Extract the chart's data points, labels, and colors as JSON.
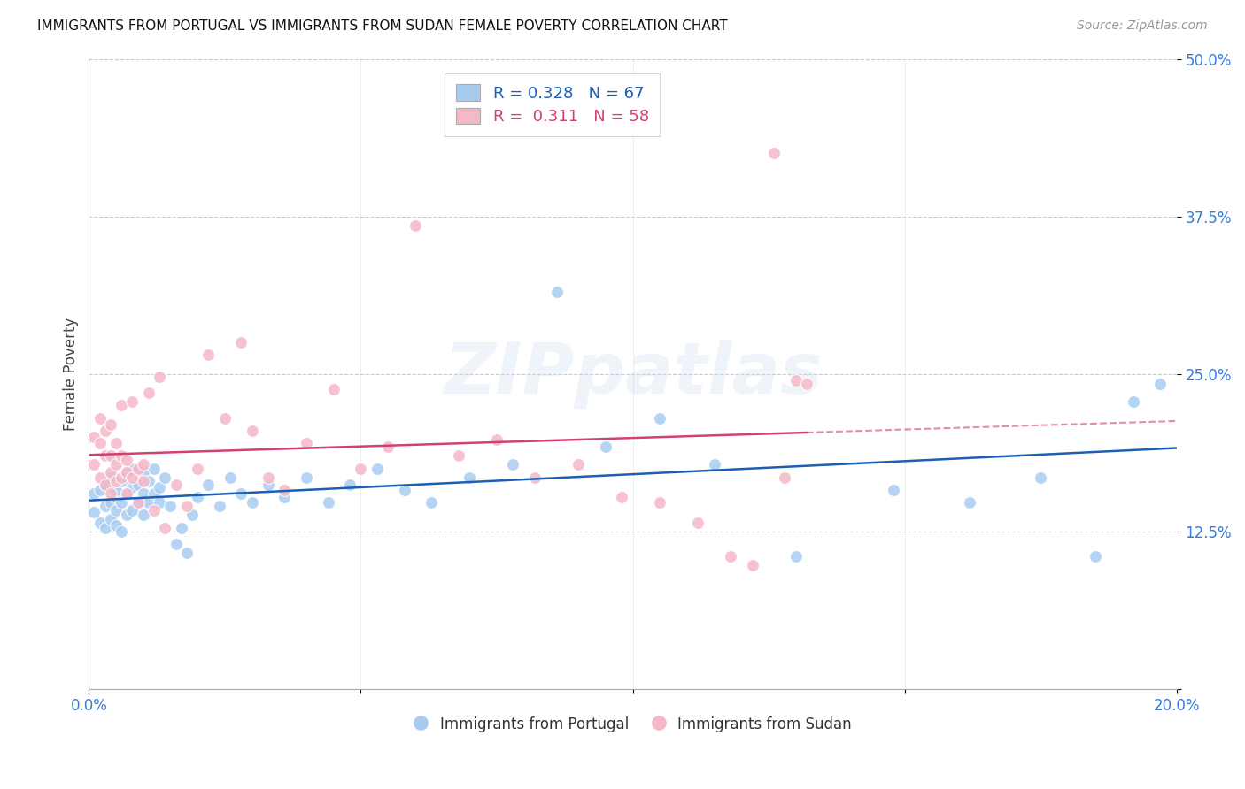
{
  "title": "IMMIGRANTS FROM PORTUGAL VS IMMIGRANTS FROM SUDAN FEMALE POVERTY CORRELATION CHART",
  "source": "Source: ZipAtlas.com",
  "ylabel": "Female Poverty",
  "xlabel_portugal": "Immigrants from Portugal",
  "xlabel_sudan": "Immigrants from Sudan",
  "xlim": [
    0.0,
    0.2
  ],
  "ylim": [
    0.0,
    0.5
  ],
  "xticks": [
    0.0,
    0.05,
    0.1,
    0.15,
    0.2
  ],
  "yticks": [
    0.0,
    0.125,
    0.25,
    0.375,
    0.5
  ],
  "ytick_labels": [
    "",
    "12.5%",
    "25.0%",
    "37.5%",
    "50.0%"
  ],
  "portugal_R": "0.328",
  "portugal_N": "67",
  "sudan_R": "0.311",
  "sudan_N": "58",
  "portugal_color": "#A8CCF0",
  "sudan_color": "#F5B8C8",
  "portugal_line_color": "#1A5FB4",
  "sudan_line_color": "#D04070",
  "grid_color": "#CCCCCC",
  "portugal_x": [
    0.001,
    0.001,
    0.002,
    0.002,
    0.003,
    0.003,
    0.003,
    0.004,
    0.004,
    0.004,
    0.005,
    0.005,
    0.005,
    0.005,
    0.006,
    0.006,
    0.006,
    0.007,
    0.007,
    0.007,
    0.008,
    0.008,
    0.008,
    0.009,
    0.009,
    0.01,
    0.01,
    0.01,
    0.011,
    0.011,
    0.012,
    0.012,
    0.013,
    0.013,
    0.014,
    0.015,
    0.016,
    0.017,
    0.018,
    0.019,
    0.02,
    0.022,
    0.024,
    0.026,
    0.028,
    0.03,
    0.033,
    0.036,
    0.04,
    0.044,
    0.048,
    0.053,
    0.058,
    0.063,
    0.07,
    0.078,
    0.086,
    0.095,
    0.105,
    0.115,
    0.13,
    0.148,
    0.162,
    0.175,
    0.185,
    0.192,
    0.197
  ],
  "portugal_y": [
    0.14,
    0.155,
    0.132,
    0.158,
    0.145,
    0.128,
    0.162,
    0.135,
    0.148,
    0.168,
    0.13,
    0.152,
    0.142,
    0.158,
    0.125,
    0.148,
    0.165,
    0.138,
    0.155,
    0.172,
    0.142,
    0.16,
    0.175,
    0.148,
    0.162,
    0.138,
    0.155,
    0.172,
    0.148,
    0.165,
    0.155,
    0.175,
    0.16,
    0.148,
    0.168,
    0.145,
    0.115,
    0.128,
    0.108,
    0.138,
    0.152,
    0.162,
    0.145,
    0.168,
    0.155,
    0.148,
    0.162,
    0.152,
    0.168,
    0.148,
    0.162,
    0.175,
    0.158,
    0.148,
    0.168,
    0.178,
    0.315,
    0.192,
    0.215,
    0.178,
    0.105,
    0.158,
    0.148,
    0.168,
    0.105,
    0.228,
    0.242
  ],
  "sudan_x": [
    0.001,
    0.001,
    0.002,
    0.002,
    0.002,
    0.003,
    0.003,
    0.003,
    0.004,
    0.004,
    0.004,
    0.004,
    0.005,
    0.005,
    0.005,
    0.006,
    0.006,
    0.006,
    0.007,
    0.007,
    0.007,
    0.008,
    0.008,
    0.009,
    0.009,
    0.01,
    0.01,
    0.011,
    0.012,
    0.013,
    0.014,
    0.016,
    0.018,
    0.02,
    0.022,
    0.025,
    0.028,
    0.03,
    0.033,
    0.036,
    0.04,
    0.045,
    0.05,
    0.055,
    0.06,
    0.068,
    0.075,
    0.082,
    0.09,
    0.098,
    0.105,
    0.112,
    0.118,
    0.122,
    0.126,
    0.128,
    0.13,
    0.132
  ],
  "sudan_y": [
    0.2,
    0.178,
    0.215,
    0.168,
    0.195,
    0.162,
    0.185,
    0.205,
    0.155,
    0.172,
    0.185,
    0.21,
    0.165,
    0.178,
    0.195,
    0.185,
    0.168,
    0.225,
    0.172,
    0.155,
    0.182,
    0.168,
    0.228,
    0.175,
    0.148,
    0.178,
    0.165,
    0.235,
    0.142,
    0.248,
    0.128,
    0.162,
    0.145,
    0.175,
    0.265,
    0.215,
    0.275,
    0.205,
    0.168,
    0.158,
    0.195,
    0.238,
    0.175,
    0.192,
    0.368,
    0.185,
    0.198,
    0.168,
    0.178,
    0.152,
    0.148,
    0.132,
    0.105,
    0.098,
    0.425,
    0.168,
    0.245,
    0.242
  ]
}
